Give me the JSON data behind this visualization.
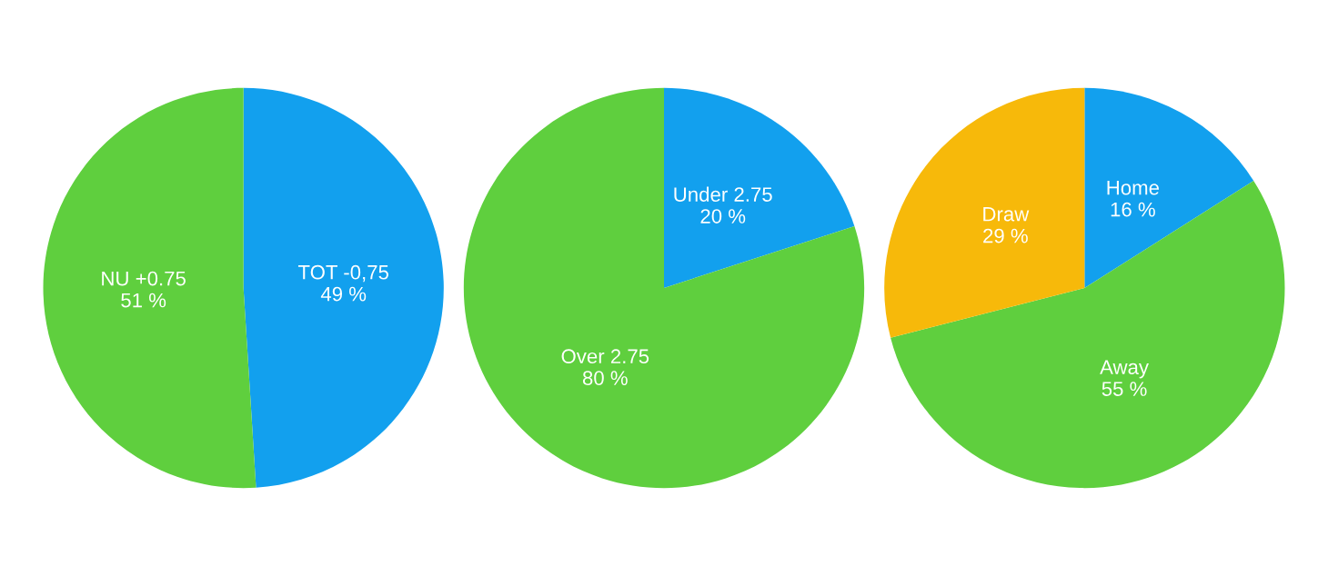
{
  "chart_data": [
    {
      "type": "pie",
      "categories": [
        "TOT -0,75",
        "NU +0.75"
      ],
      "values": [
        49,
        51
      ],
      "colors": [
        "#12a0ee",
        "#5fcf3e"
      ],
      "value_labels": [
        "49 %",
        "51 %"
      ]
    },
    {
      "type": "pie",
      "categories": [
        "Under 2.75",
        "Over 2.75"
      ],
      "values": [
        20,
        80
      ],
      "colors": [
        "#12a0ee",
        "#5fcf3e"
      ],
      "value_labels": [
        "20 %",
        "80 %"
      ]
    },
    {
      "type": "pie",
      "categories": [
        "Home",
        "Away",
        "Draw"
      ],
      "values": [
        16,
        55,
        29
      ],
      "colors": [
        "#12a0ee",
        "#5fcf3e",
        "#f7b90a"
      ],
      "value_labels": [
        "16 %",
        "55 %",
        "29 %"
      ]
    }
  ]
}
